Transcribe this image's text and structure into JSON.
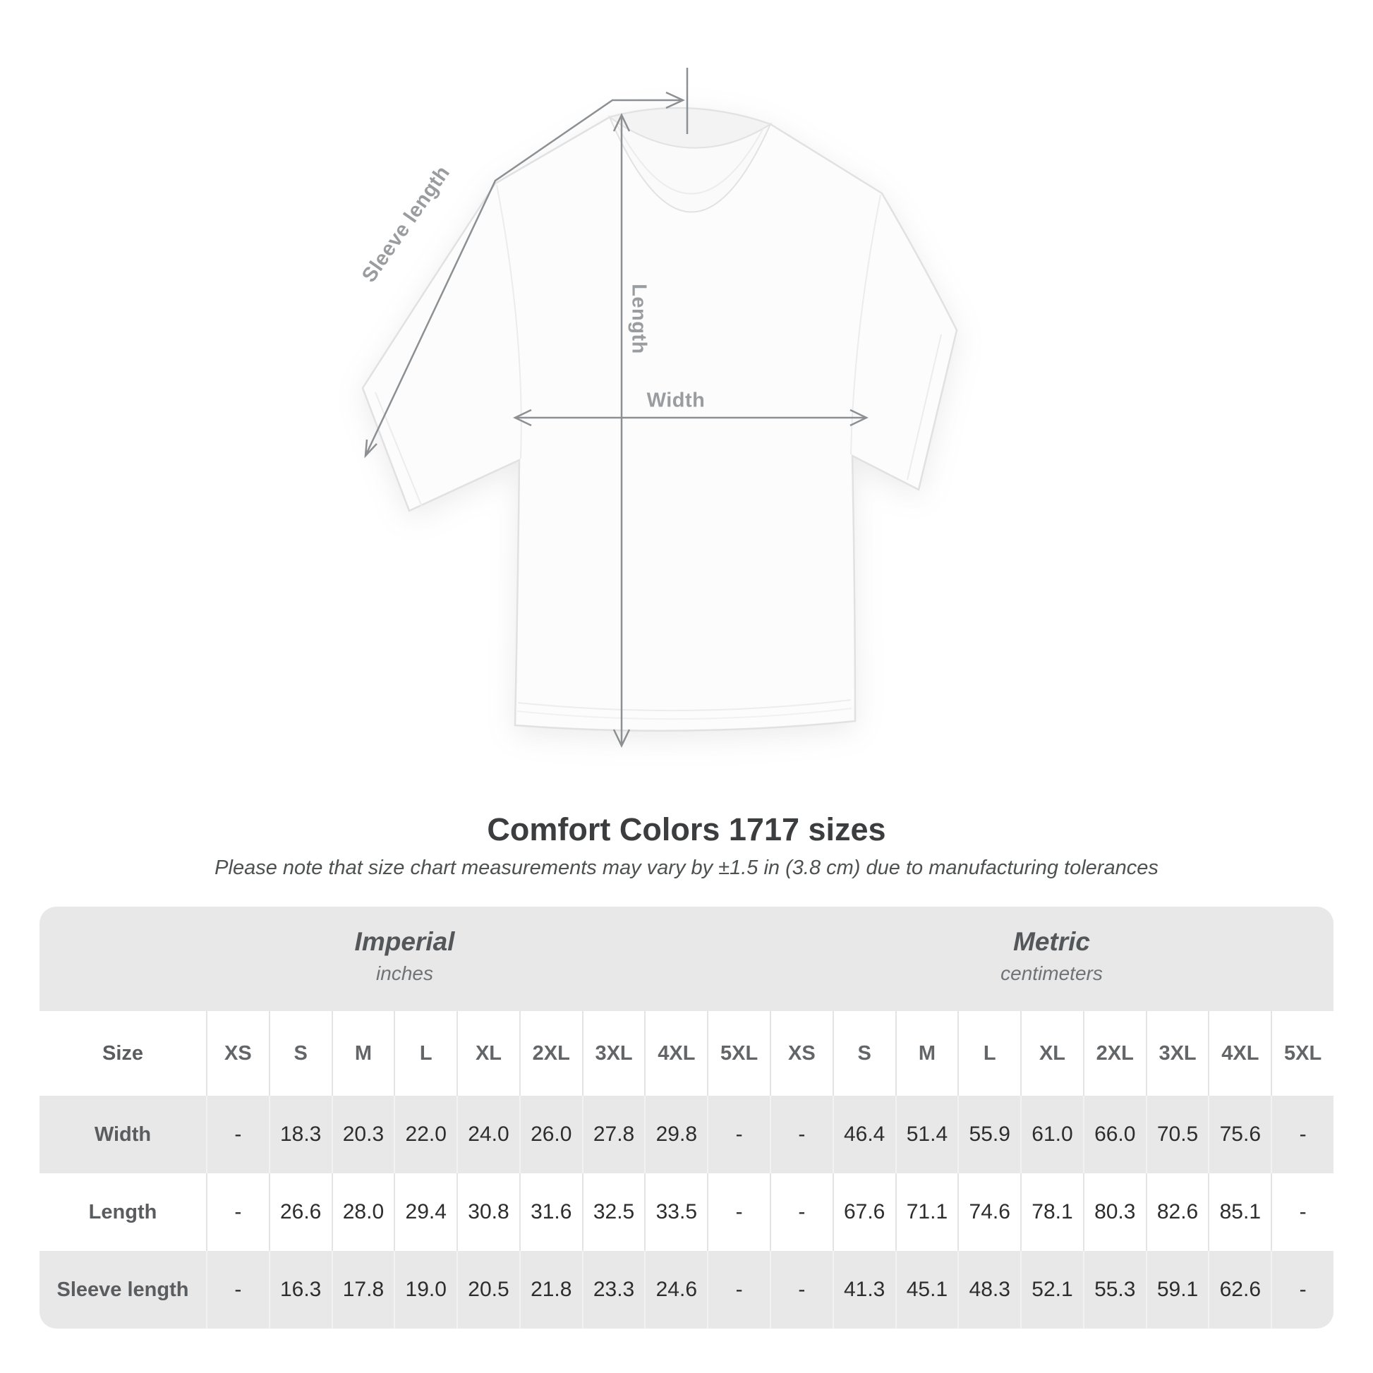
{
  "diagram": {
    "sleeve_length_label": "Sleeve length",
    "length_label": "Length",
    "width_label": "Width"
  },
  "heading": {
    "title": "Comfort Colors 1717 sizes",
    "subtitle": "Please note that size chart measurements may vary by ±1.5 in (3.8 cm) due to manufacturing tolerances"
  },
  "table": {
    "size_col_header": "Size",
    "sizes": [
      "XS",
      "S",
      "M",
      "L",
      "XL",
      "2XL",
      "3XL",
      "4XL",
      "5XL"
    ],
    "unit_groups": [
      {
        "label": "Imperial",
        "sublabel": "inches"
      },
      {
        "label": "Metric",
        "sublabel": "centimeters"
      }
    ],
    "rows": [
      {
        "label": "Width",
        "imperial": [
          "-",
          "18.3",
          "20.3",
          "22.0",
          "24.0",
          "26.0",
          "27.8",
          "29.8",
          "-"
        ],
        "metric": [
          "-",
          "46.4",
          "51.4",
          "55.9",
          "61.0",
          "66.0",
          "70.5",
          "75.6",
          "-"
        ]
      },
      {
        "label": "Length",
        "imperial": [
          "-",
          "26.6",
          "28.0",
          "29.4",
          "30.8",
          "31.6",
          "32.5",
          "33.5",
          "-"
        ],
        "metric": [
          "-",
          "67.6",
          "71.1",
          "74.6",
          "78.1",
          "80.3",
          "82.6",
          "85.1",
          "-"
        ]
      },
      {
        "label": "Sleeve length",
        "imperial": [
          "-",
          "16.3",
          "17.8",
          "19.0",
          "20.5",
          "21.8",
          "23.3",
          "24.6",
          "-"
        ],
        "metric": [
          "-",
          "41.3",
          "45.1",
          "48.3",
          "52.1",
          "55.3",
          "59.1",
          "62.6",
          "-"
        ]
      }
    ]
  },
  "colors": {
    "band_bg": "#e9e8e8",
    "shaded_row_bg": "#e9e8e8",
    "value_text": "#2d2d2d",
    "label_text": "#5a5d5f",
    "title_text": "#3b3d3e",
    "measure_line": "#8c9093",
    "measure_label": "#9a9da0"
  },
  "chart_data": {
    "type": "table",
    "title": "Comfort Colors 1717 sizes",
    "note": "Please note that size chart measurements may vary by ±1.5 in (3.8 cm) due to manufacturing tolerances",
    "columns": [
      "XS",
      "S",
      "M",
      "L",
      "XL",
      "2XL",
      "3XL",
      "4XL",
      "5XL"
    ],
    "units": {
      "imperial": "inches",
      "metric": "centimeters"
    },
    "imperial": {
      "Width": [
        null,
        18.3,
        20.3,
        22.0,
        24.0,
        26.0,
        27.8,
        29.8,
        null
      ],
      "Length": [
        null,
        26.6,
        28.0,
        29.4,
        30.8,
        31.6,
        32.5,
        33.5,
        null
      ],
      "Sleeve length": [
        null,
        16.3,
        17.8,
        19.0,
        20.5,
        21.8,
        23.3,
        24.6,
        null
      ]
    },
    "metric": {
      "Width": [
        null,
        46.4,
        51.4,
        55.9,
        61.0,
        66.0,
        70.5,
        75.6,
        null
      ],
      "Length": [
        null,
        67.6,
        71.1,
        74.6,
        78.1,
        80.3,
        82.6,
        85.1,
        null
      ],
      "Sleeve length": [
        null,
        41.3,
        45.1,
        48.3,
        52.1,
        55.3,
        59.1,
        62.6,
        null
      ]
    }
  }
}
